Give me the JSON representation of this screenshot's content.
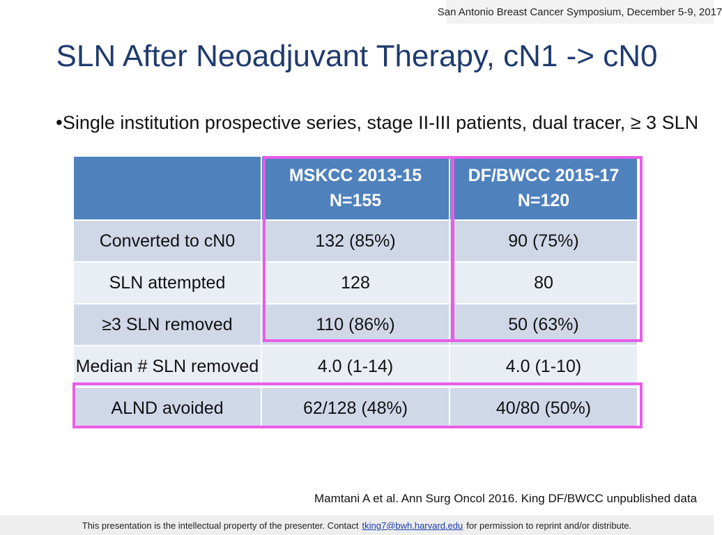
{
  "conference": "San Antonio Breast Cancer Symposium, December 5-9, 2017",
  "title": "SLN After Neoadjuvant Therapy,  cN1 -> cN0",
  "bullet": "Single institution prospective series, stage II-III patients, dual tracer, ≥ 3 SLN",
  "table": {
    "columns": [
      {
        "line1": "MSKCC 2013-15",
        "line2": "N=155"
      },
      {
        "line1": "DF/BWCC 2015-17",
        "line2": "N=120"
      }
    ],
    "rows": [
      {
        "label": "Converted to cN0",
        "values": [
          "132 (85%)",
          "90 (75%)"
        ]
      },
      {
        "label": "SLN attempted",
        "values": [
          "128",
          "80"
        ]
      },
      {
        "label": "≥3 SLN removed",
        "values": [
          "110 (86%)",
          "50 (63%)"
        ]
      },
      {
        "label": "Median # SLN removed",
        "values": [
          "4.0 (1-14)",
          "4.0 (1-10)"
        ]
      },
      {
        "label": "ALND avoided",
        "values": [
          "62/128 (48%)",
          "40/80 (50%)"
        ]
      }
    ]
  },
  "citation": "Mamtani A et al. Ann Surg Oncol 2016. King DF/BWCC unpublished data",
  "footer": {
    "before": "This presentation is the intellectual property of the presenter.  Contact",
    "email": "tking7@bwh.harvard.edu",
    "after": "for permission to reprint and/or distribute."
  },
  "colors": {
    "header_fill": "#4f81bd",
    "row_dark": "#d0d8e8",
    "row_light": "#e9edf4",
    "highlight": "#e85ce8",
    "title": "#1f3b6e"
  }
}
